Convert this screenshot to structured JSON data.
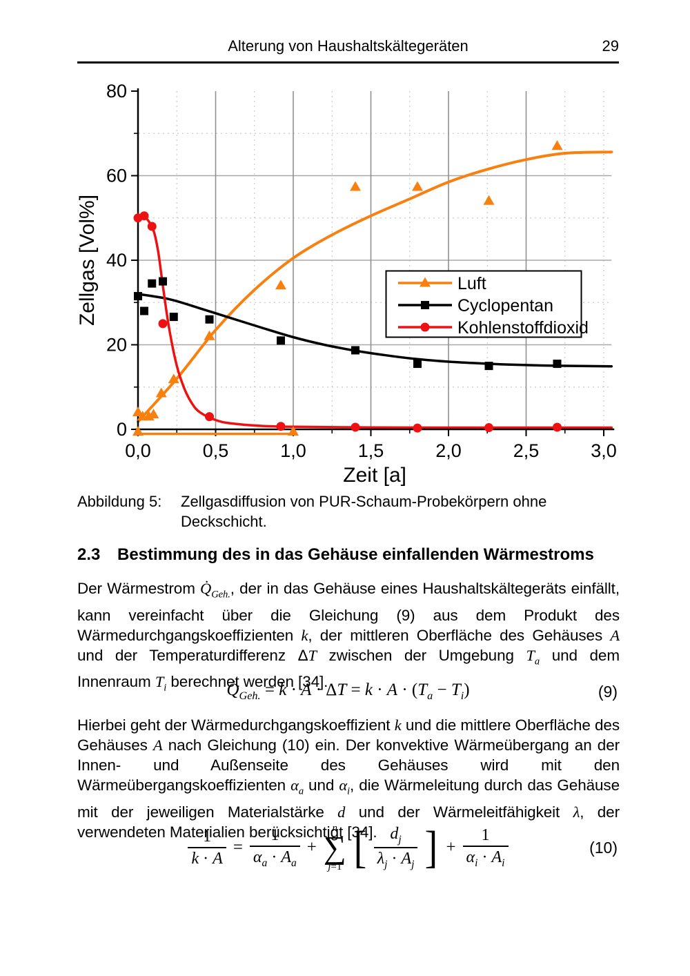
{
  "header": {
    "title": "Alterung von Haushaltskältegeräten",
    "page_number": "29"
  },
  "chart_data": {
    "type": "scatter",
    "title": "",
    "xlabel": "Zeit [a]",
    "ylabel": "Zellgas [Vol%]",
    "xlim": [
      0,
      3.05
    ],
    "ylim": [
      0,
      80
    ],
    "x_major_ticks": [
      0,
      0.5,
      1.0,
      1.5,
      2.0,
      2.5,
      3.0
    ],
    "x_tick_labels": [
      "0,0",
      "0,5",
      "1,0",
      "1,5",
      "2,0",
      "2,5",
      "3,0"
    ],
    "x_minor_ticks": [
      0.25,
      0.75,
      1.25,
      1.75,
      2.25,
      2.75
    ],
    "y_major_ticks": [
      0,
      20,
      40,
      60,
      80
    ],
    "y_tick_labels": [
      "0",
      "20",
      "40",
      "60",
      "80"
    ],
    "y_minor_ticks": [
      10,
      30,
      50,
      70
    ],
    "grid": {
      "x_solid": [
        0.5,
        1.0,
        1.5,
        2.0,
        2.5
      ],
      "x_dashed": [
        0.25,
        0.75,
        1.25,
        1.75,
        2.25,
        2.75,
        3.0
      ],
      "y_solid": [
        20,
        40,
        60
      ],
      "y_dashed": [
        10,
        30,
        50,
        70
      ]
    },
    "legend": {
      "position": "inside-right"
    },
    "series": [
      {
        "name": "Luft",
        "color": "#F8800F",
        "marker": "triangle",
        "points": [
          [
            0,
            4
          ],
          [
            0.03,
            3
          ],
          [
            0.07,
            3
          ],
          [
            0.1,
            3.5
          ],
          [
            0.15,
            8.5
          ],
          [
            0.23,
            11.8
          ],
          [
            0.46,
            22
          ],
          [
            0.92,
            34
          ],
          [
            1.4,
            57.3
          ],
          [
            1.8,
            57.3
          ],
          [
            2.26,
            54
          ],
          [
            2.7,
            67
          ]
        ],
        "fit": [
          [
            0,
            1.8
          ],
          [
            0.25,
            12
          ],
          [
            0.5,
            23.5
          ],
          [
            0.75,
            33
          ],
          [
            1.0,
            40.5
          ],
          [
            1.25,
            46
          ],
          [
            1.5,
            50.5
          ],
          [
            1.75,
            54.5
          ],
          [
            2.0,
            58.5
          ],
          [
            2.25,
            61.5
          ],
          [
            2.5,
            63.8
          ],
          [
            2.75,
            65.3
          ],
          [
            3.05,
            65.6
          ]
        ],
        "baseline": [
          [
            0,
            -0.6
          ],
          [
            1.0,
            -0.6
          ]
        ]
      },
      {
        "name": "Cyclopentan",
        "color": "#000000",
        "marker": "square",
        "points": [
          [
            0,
            31.5
          ],
          [
            0.04,
            28
          ],
          [
            0.09,
            34.5
          ],
          [
            0.16,
            35
          ],
          [
            0.23,
            26.6
          ],
          [
            0.46,
            26
          ],
          [
            0.92,
            21
          ],
          [
            1.4,
            18.7
          ],
          [
            1.8,
            15.5
          ],
          [
            2.26,
            15
          ],
          [
            2.7,
            15.5
          ]
        ],
        "fit": [
          [
            0,
            32
          ],
          [
            0.2,
            30.8
          ],
          [
            0.4,
            28.6
          ],
          [
            0.6,
            26.3
          ],
          [
            0.8,
            24
          ],
          [
            1.0,
            21.8
          ],
          [
            1.2,
            20
          ],
          [
            1.4,
            18.6
          ],
          [
            1.6,
            17.5
          ],
          [
            1.8,
            16.6
          ],
          [
            2.0,
            16
          ],
          [
            2.2,
            15.6
          ],
          [
            2.4,
            15.3
          ],
          [
            2.6,
            15.1
          ],
          [
            2.8,
            15
          ],
          [
            3.05,
            14.9
          ]
        ]
      },
      {
        "name": "Kohlenstoffdioxid",
        "color": "#EE1111",
        "marker": "circle",
        "points": [
          [
            0,
            50
          ],
          [
            0.04,
            50.5
          ],
          [
            0.09,
            48
          ],
          [
            0.16,
            25
          ],
          [
            0.46,
            3
          ],
          [
            0.92,
            0.7
          ],
          [
            1.4,
            0.5
          ],
          [
            1.8,
            0.3
          ],
          [
            2.26,
            0.4
          ],
          [
            2.7,
            0.5
          ]
        ],
        "fit": [
          [
            0,
            50
          ],
          [
            0.05,
            50
          ],
          [
            0.1,
            47
          ],
          [
            0.13,
            42
          ],
          [
            0.16,
            34
          ],
          [
            0.2,
            24
          ],
          [
            0.25,
            15
          ],
          [
            0.3,
            9.5
          ],
          [
            0.35,
            6
          ],
          [
            0.4,
            4
          ],
          [
            0.5,
            2.2
          ],
          [
            0.6,
            1.4
          ],
          [
            0.8,
            0.8
          ],
          [
            1.0,
            0.6
          ],
          [
            1.5,
            0.45
          ],
          [
            2.0,
            0.4
          ],
          [
            2.5,
            0.4
          ],
          [
            3.05,
            0.4
          ]
        ]
      }
    ]
  },
  "caption": {
    "label": "Abbildung 5:",
    "text": "Zellgasdiffusion von PUR-Schaum-Probekörpern ohne Deckschicht."
  },
  "section": {
    "number": "2.3",
    "title": "Bestimmung des in das Gehäuse einfallenden Wärmestroms"
  },
  "paragraphs": {
    "p1": "Der Wärmestrom *Q̇*_{*Geh.*}, der in das Gehäuse eines Haushaltskältegeräts einfällt, kann vereinfacht über die Gleichung (9) aus dem Produkt des Wärmedurchgangskoeffizienten *k*, der mittleren Oberfläche des Gehäuses *A* und der Temperaturdifferenz Δ*T* zwischen der Umgebung *T*_{*a*} und dem Innenraum *T*_{*i*} berechnet werden [34].",
    "p2": "Hierbei geht der Wärmedurchgangskoeffizient *k* und die mittlere Oberfläche des Gehäuses *A* nach Gleichung (10) ein. Der konvektive Wärmeübergang an der Innen- und Außenseite des Gehäuses wird mit den Wärmeübergangskoeffizienten *α*_{*a*} und *α*_{*i*}, die Wärmeleitung durch das Gehäuse mit der jeweiligen Materialstärke *d* und der Wärmeleitfähigkeit *λ*, der verwendeten Materialien berücksichtigt [34]."
  },
  "equation9": {
    "content": "*Q̇*_{*Geh.*} = *k* · *A* · Δ*T* = *k* · *A* · (*T*_{*a*} − *T*_{*i*})",
    "number": "(9)"
  },
  "equation10": {
    "number": "(10)",
    "terms": [
      {
        "type": "frac",
        "num": "1",
        "den": "*k* · *A*"
      },
      {
        "type": "op",
        "text": "="
      },
      {
        "type": "frac",
        "num": "1",
        "den": "*α*_{*a*} · *A*_{*a*}"
      },
      {
        "type": "op",
        "text": "+"
      },
      {
        "type": "sum",
        "sup": "*n*",
        "sub": "*j*=1"
      },
      {
        "type": "open",
        "text": "["
      },
      {
        "type": "frac",
        "num": "*d*_{*j*}",
        "den": "*λ*_{*j*} · *A*_{*j*}"
      },
      {
        "type": "close",
        "text": "]"
      },
      {
        "type": "op",
        "text": "+"
      },
      {
        "type": "frac",
        "num": "1",
        "den": "*α*_{*i*} · *A*_{*i*}"
      }
    ]
  }
}
